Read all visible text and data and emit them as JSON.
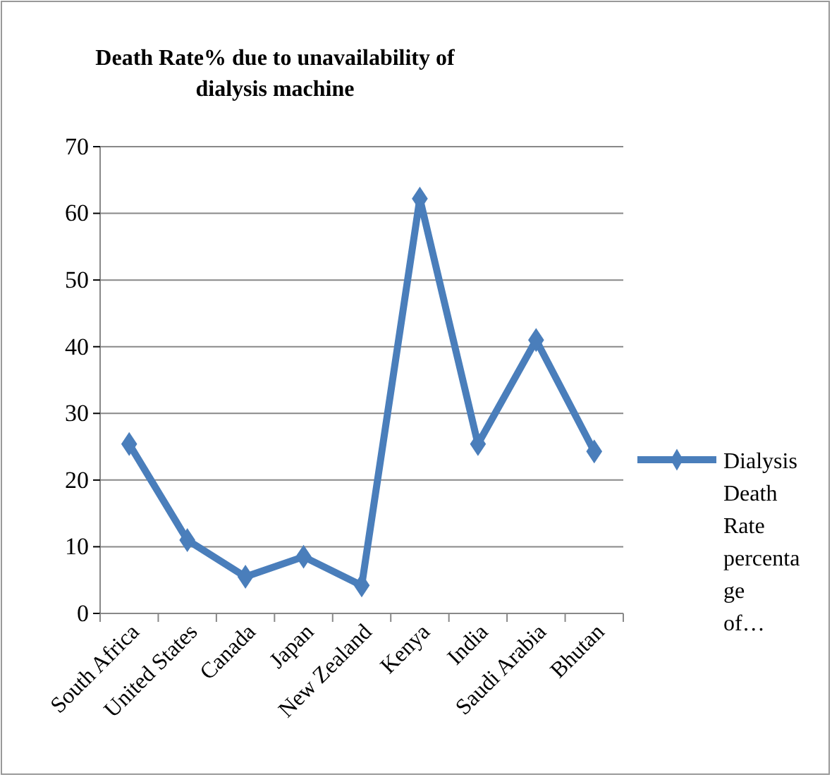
{
  "chart_data": {
    "type": "line",
    "title": "Death Rate% due to unavailability  of dialysis machine",
    "categories": [
      "South Africa",
      "United States",
      "Canada",
      "Japan",
      "New Zealand",
      "Kenya",
      "India",
      "Saudi Arabia",
      "Bhutan"
    ],
    "series": [
      {
        "name": "Dialysis Death Rate percentage of…",
        "color": "#4a7ebb",
        "values": [
          25.4,
          11,
          5.5,
          8.5,
          4.2,
          62.2,
          25.4,
          41,
          24.3
        ]
      }
    ],
    "ylim": [
      0,
      70
    ],
    "yticks": [
      0,
      10,
      20,
      30,
      40,
      50,
      60,
      70
    ],
    "grid": "y",
    "legend": "right",
    "marker": "diamond",
    "line_style": "solid"
  }
}
